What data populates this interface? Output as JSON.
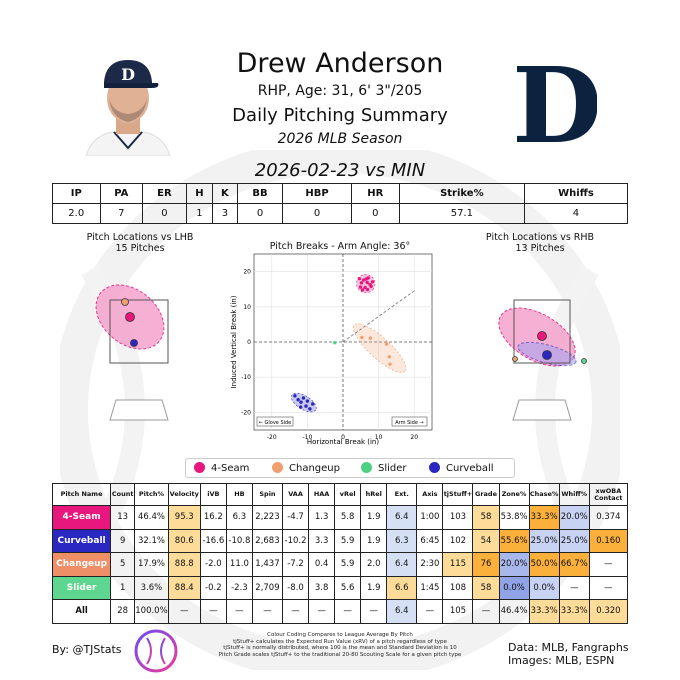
{
  "header": {
    "player_name": "Drew Anderson",
    "player_info": "RHP, Age: 31, 6' 3\"/205",
    "summary_title": "Daily Pitching Summary",
    "season": "2026 MLB Season",
    "game_title": "2026-02-23 vs MIN",
    "team_logo_letter": "D",
    "cap_letter": "D"
  },
  "stat_line": {
    "headers": [
      "IP",
      "PA",
      "ER",
      "H",
      "K",
      "BB",
      "HBP",
      "HR",
      "Strike%",
      "Whiffs"
    ],
    "values": [
      "2.0",
      "7",
      "0",
      "1",
      "3",
      "0",
      "0",
      "0",
      "57.1",
      "4"
    ]
  },
  "plots": {
    "lhb_title": "Pitch Locations vs LHB",
    "lhb_count": "15 Pitches",
    "rhb_title": "Pitch Locations vs RHB",
    "rhb_count": "13 Pitches",
    "break_title": "Pitch Breaks - Arm Angle: 36°"
  },
  "chart_data": {
    "type": "scatter",
    "title": "Pitch Breaks - Arm Angle: 36°",
    "xlabel": "Horizontal Break (in)",
    "ylabel": "Induced Vertical Break (in)",
    "xlim": [
      -25,
      25
    ],
    "ylim": [
      -25,
      25
    ],
    "xticks": [
      -20,
      -10,
      0,
      10,
      20
    ],
    "yticks": [
      -20,
      -10,
      0,
      10,
      20
    ],
    "annotations": [
      "← Glove Side",
      "Arm Side →"
    ],
    "arm_angle_deg": 36,
    "series": [
      {
        "name": "4-Seam",
        "color": "#e8177d",
        "points": [
          [
            4.6,
            18
          ],
          [
            5.2,
            16.8
          ],
          [
            5.8,
            17.6
          ],
          [
            6.2,
            15.5
          ],
          [
            6.8,
            16.9
          ],
          [
            7.1,
            18.2
          ],
          [
            7.6,
            16.3
          ],
          [
            8.3,
            17.1
          ],
          [
            4.9,
            15.6
          ],
          [
            6.5,
            17.9
          ],
          [
            7.9,
            15.8
          ],
          [
            5.5,
            14.8
          ],
          [
            6.9,
            14.9
          ]
        ]
      },
      {
        "name": "Changeup",
        "color": "#f0a070",
        "points": [
          [
            5.3,
            1.3
          ],
          [
            7.7,
            1.1
          ],
          [
            12.3,
            -0.6
          ],
          [
            13.0,
            -4.2
          ],
          [
            13.2,
            -6.3
          ]
        ]
      },
      {
        "name": "Slider",
        "color": "#4cd084",
        "points": [
          [
            -2.3,
            -0.2
          ]
        ]
      },
      {
        "name": "Curveball",
        "color": "#2a28c0",
        "points": [
          [
            -13.5,
            -15.3
          ],
          [
            -12.6,
            -16.4
          ],
          [
            -11.8,
            -17.1
          ],
          [
            -11.1,
            -15.9
          ],
          [
            -10.4,
            -18.2
          ],
          [
            -10.0,
            -16.8
          ],
          [
            -9.3,
            -19.0
          ],
          [
            -8.5,
            -17.6
          ],
          [
            -11.9,
            -18.5
          ]
        ]
      }
    ]
  },
  "legend": [
    {
      "label": "4-Seam",
      "color": "#e8177d"
    },
    {
      "label": "Changeup",
      "color": "#f0a070"
    },
    {
      "label": "Slider",
      "color": "#4cd084"
    },
    {
      "label": "Curveball",
      "color": "#2a28c0"
    }
  ],
  "pitch_table": {
    "headers": [
      "Pitch Name",
      "Count",
      "Pitch%",
      "Velocity",
      "iVB",
      "HB",
      "Spin",
      "VAA",
      "HAA",
      "vRel",
      "hRel",
      "Ext.",
      "Axis",
      "tjStuff+",
      "Grade",
      "Zone%",
      "Chase%",
      "Whiff%",
      "xwOBA Contact"
    ],
    "rows": [
      {
        "name": "4-Seam",
        "color": "#e8177d",
        "cells": [
          "13",
          "46.4%",
          "95.3",
          "16.2",
          "6.3",
          "2,223",
          "-4.7",
          "1.3",
          "5.8",
          "1.9",
          "6.4",
          "1:00",
          "103",
          "58",
          "53.8%",
          "33.3%",
          "20.0%",
          "0.374"
        ],
        "bg": [
          "",
          "",
          "#fddc9a",
          "",
          "",
          "",
          "",
          "",
          "",
          "",
          "#d6e0f5",
          "",
          "",
          "#fddc9a",
          "",
          "#fbb03b",
          "#c8d2f2",
          ""
        ]
      },
      {
        "name": "Curveball",
        "color": "#2a28c0",
        "cells": [
          "9",
          "32.1%",
          "80.6",
          "-16.6",
          "-10.8",
          "2,683",
          "-10.2",
          "3.3",
          "5.9",
          "1.9",
          "6.3",
          "6:45",
          "102",
          "54",
          "55.6%",
          "25.0%",
          "25.0%",
          "0.160"
        ],
        "bg": [
          "",
          "",
          "#fddc9a",
          "",
          "",
          "",
          "",
          "",
          "",
          "",
          "#d6e0f5",
          "",
          "",
          "#fddc9a",
          "#fbb03b",
          "#c8d2f2",
          "#c8d2f2",
          "#fbb03b"
        ]
      },
      {
        "name": "Changeup",
        "color": "#ef8f67",
        "cells": [
          "5",
          "17.9%",
          "88.8",
          "-2.0",
          "11.0",
          "1,437",
          "-7.2",
          "0.4",
          "5.9",
          "2.0",
          "6.4",
          "2:30",
          "115",
          "76",
          "20.0%",
          "50.0%",
          "66.7%",
          "—"
        ],
        "bg": [
          "",
          "",
          "#fddc9a",
          "",
          "",
          "",
          "",
          "",
          "",
          "",
          "#d6e0f5",
          "",
          "#fddc9a",
          "#fbb03b",
          "#a9b8ec",
          "#fbb03b",
          "#fbb03b",
          ""
        ]
      },
      {
        "name": "Slider",
        "color": "#5fd68f",
        "cells": [
          "1",
          "3.6%",
          "88.4",
          "-0.2",
          "-2.3",
          "2,709",
          "-8.0",
          "3.8",
          "5.6",
          "1.9",
          "6.6",
          "1:45",
          "108",
          "58",
          "0.0%",
          "0.0%",
          "—",
          "—"
        ],
        "bg": [
          "",
          "",
          "#fddc9a",
          "",
          "",
          "",
          "",
          "",
          "",
          "",
          "#fddc9a",
          "",
          "",
          "#fddc9a",
          "#8fa3e6",
          "#c8d2f2",
          "",
          ""
        ]
      },
      {
        "name": "All",
        "color": "#ffffff",
        "cells": [
          "28",
          "100.0%",
          "—",
          "—",
          "—",
          "—",
          "—",
          "—",
          "—",
          "—",
          "6.4",
          "—",
          "105",
          "—",
          "46.4%",
          "33.3%",
          "33.3%",
          "0.320"
        ],
        "bg": [
          "",
          "",
          "",
          "",
          "",
          "",
          "",
          "",
          "",
          "",
          "#d6e0f5",
          "",
          "",
          "",
          "",
          "#fddc9a",
          "#fddc9a",
          "#fddc9a"
        ]
      }
    ]
  },
  "footer": {
    "byline": "By: @TJStats",
    "footnote": "Colour Coding Compares to League Average By Pitch\ntjStuff+ calculates the Expected Run Value (xRV) of a pitch regardless of type\ntjStuff+ is normally distributed, where 100 is the mean and Standard Deviation is 10\nPitch Grade scales tjStuff+ to the traditional 20-80 Scouting Scale for a given pitch type",
    "source_data": "Data: MLB, Fangraphs",
    "source_images": "Images: MLB, ESPN"
  }
}
